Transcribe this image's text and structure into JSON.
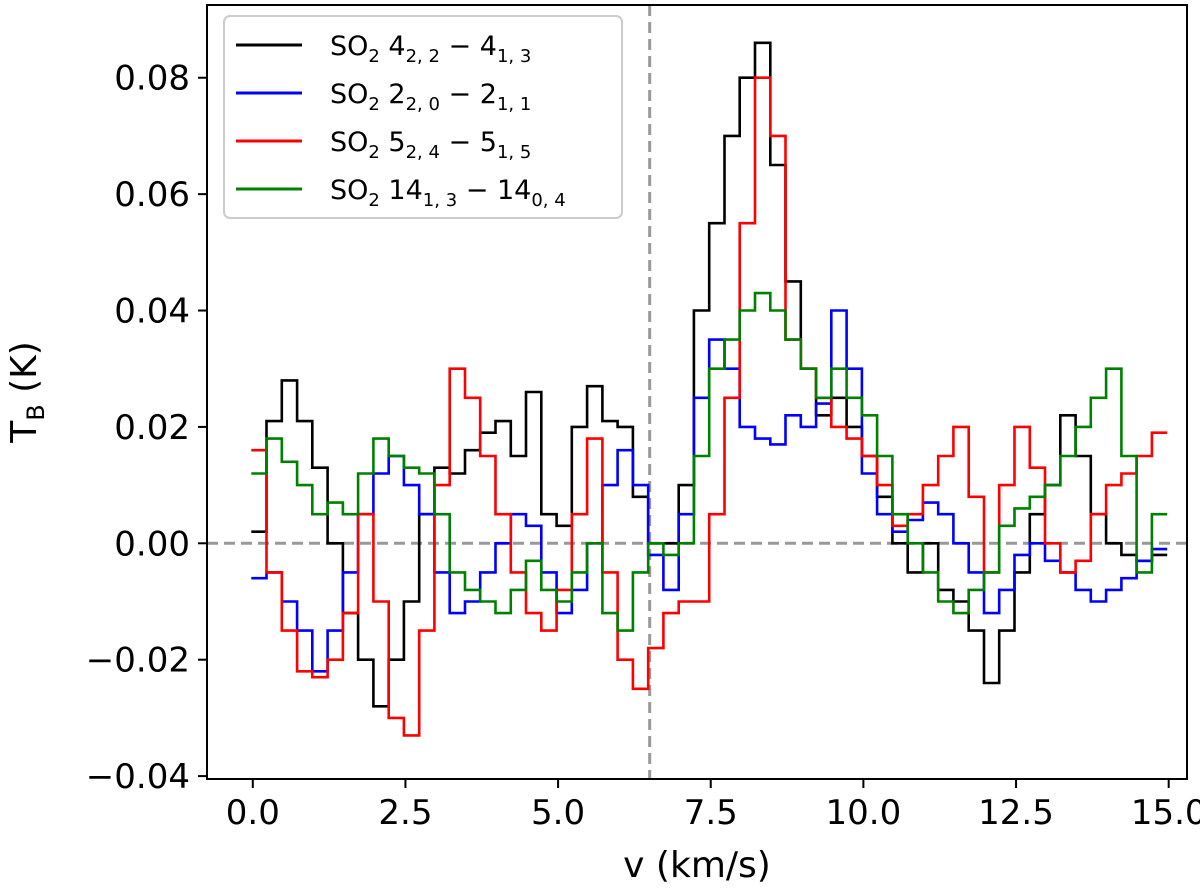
{
  "chart_data": {
    "type": "line",
    "style": "step",
    "xlabel": "v (km/s)",
    "ylabel": {
      "main": "T",
      "sub": "B",
      "unit": " (K)"
    },
    "xlim": [
      -0.75,
      15.3
    ],
    "ylim": [
      -0.0405,
      0.0925
    ],
    "x_ticks": [
      0.0,
      2.5,
      5.0,
      7.5,
      10.0,
      12.5,
      15.0
    ],
    "x_tick_labels": [
      "0.0",
      "2.5",
      "5.0",
      "7.5",
      "10.0",
      "12.5",
      "15.0"
    ],
    "y_ticks": [
      -0.04,
      -0.02,
      0.0,
      0.02,
      0.04,
      0.06,
      0.08
    ],
    "y_tick_labels": [
      "−0.04",
      "−0.02",
      "0.00",
      "0.02",
      "0.04",
      "0.06",
      "0.08"
    ],
    "grid": false,
    "legend_position": "top-left",
    "reference_lines": [
      {
        "axis": "x",
        "value": 6.5,
        "style": "dashed",
        "color": "#999999"
      },
      {
        "axis": "y",
        "value": 0.0,
        "style": "dashed",
        "color": "#999999"
      }
    ],
    "series": [
      {
        "name": "SO2 4_{2,2} - 4_{1,3}",
        "label": {
          "species": "SO",
          "species_sub": "2",
          "upper": "4",
          "upper_sub": "2, 2",
          "lower": "4",
          "lower_sub": "1, 3"
        },
        "color": "#000000",
        "x_start": 0.1,
        "x_step": 0.25,
        "values": [
          0.002,
          0.021,
          0.028,
          0.021,
          0.013,
          0.0,
          -0.012,
          -0.02,
          -0.028,
          -0.02,
          -0.01,
          0.005,
          0.013,
          0.012,
          0.016,
          0.019,
          0.021,
          0.015,
          0.026,
          0.005,
          0.003,
          0.02,
          0.027,
          0.021,
          0.02,
          0.008,
          0.0,
          0.0,
          0.01,
          0.04,
          0.055,
          0.07,
          0.08,
          0.086,
          0.065,
          0.045,
          0.03,
          0.022,
          0.025,
          0.02,
          0.015,
          0.008,
          0.0,
          -0.005,
          0.0,
          -0.008,
          -0.01,
          -0.015,
          -0.024,
          -0.015,
          -0.005,
          0.005,
          0.01,
          0.022,
          0.015,
          0.005,
          0.0,
          -0.002,
          -0.003,
          -0.002
        ]
      },
      {
        "name": "SO2 2_{2,0} - 2_{1,1}",
        "label": {
          "species": "SO",
          "species_sub": "2",
          "upper": "2",
          "upper_sub": "2, 0",
          "lower": "2",
          "lower_sub": "1, 1"
        },
        "color": "#0000ff",
        "x_start": 0.1,
        "x_step": 0.25,
        "values": [
          -0.006,
          -0.005,
          -0.01,
          -0.015,
          -0.022,
          -0.015,
          -0.005,
          0.005,
          0.012,
          0.015,
          0.01,
          0.005,
          -0.005,
          -0.012,
          -0.01,
          -0.005,
          0.0,
          0.005,
          0.003,
          -0.005,
          -0.012,
          -0.008,
          0.0,
          0.01,
          0.016,
          0.01,
          -0.002,
          -0.008,
          0.005,
          0.025,
          0.035,
          0.03,
          0.02,
          0.018,
          0.017,
          0.022,
          0.02,
          0.024,
          0.04,
          0.03,
          0.012,
          0.005,
          0.002,
          0.004,
          0.007,
          0.005,
          0.0,
          -0.005,
          -0.012,
          -0.008,
          -0.002,
          0.0,
          -0.003,
          -0.005,
          -0.008,
          -0.01,
          -0.008,
          -0.006,
          -0.003,
          -0.001
        ]
      },
      {
        "name": "SO2 5_{2,4} - 5_{1,5}",
        "label": {
          "species": "SO",
          "species_sub": "2",
          "upper": "5",
          "upper_sub": "2, 4",
          "lower": "5",
          "lower_sub": "1, 5"
        },
        "color": "#ff0000",
        "x_start": 0.1,
        "x_step": 0.25,
        "values": [
          0.016,
          -0.005,
          -0.015,
          -0.022,
          -0.023,
          -0.02,
          -0.012,
          0.005,
          -0.01,
          -0.03,
          -0.033,
          -0.015,
          0.01,
          0.03,
          0.025,
          0.015,
          0.005,
          -0.005,
          -0.012,
          -0.015,
          -0.008,
          0.005,
          0.018,
          -0.005,
          -0.02,
          -0.025,
          -0.018,
          -0.012,
          -0.01,
          -0.01,
          0.005,
          0.025,
          0.055,
          0.08,
          0.07,
          0.035,
          0.03,
          0.025,
          0.02,
          0.018,
          0.015,
          0.01,
          0.003,
          0.005,
          0.01,
          0.015,
          0.02,
          0.008,
          -0.005,
          0.01,
          0.02,
          0.013,
          0.0,
          -0.005,
          -0.003,
          0.005,
          0.01,
          0.012,
          0.015,
          0.019
        ]
      },
      {
        "name": "SO2 14_{1,3} - 14_{0,4}",
        "label": {
          "species": "SO",
          "species_sub": "2",
          "upper": "14",
          "upper_sub": "1, 3",
          "lower": "14",
          "lower_sub": "0, 4"
        },
        "color": "#008000",
        "x_start": 0.1,
        "x_step": 0.25,
        "values": [
          0.012,
          0.018,
          0.014,
          0.01,
          0.005,
          0.007,
          0.005,
          0.012,
          0.018,
          0.015,
          0.013,
          0.012,
          0.005,
          -0.005,
          -0.008,
          -0.01,
          -0.012,
          -0.008,
          -0.003,
          -0.008,
          -0.01,
          -0.005,
          0.0,
          -0.012,
          -0.015,
          -0.005,
          0.0,
          -0.002,
          0.0,
          0.015,
          0.03,
          0.035,
          0.04,
          0.043,
          0.04,
          0.035,
          0.03,
          0.025,
          0.03,
          0.025,
          0.022,
          0.015,
          0.005,
          0.0,
          -0.005,
          -0.01,
          -0.012,
          -0.008,
          -0.005,
          0.003,
          0.006,
          0.008,
          0.01,
          0.015,
          0.02,
          0.025,
          0.03,
          0.015,
          -0.005,
          0.005
        ]
      }
    ]
  }
}
